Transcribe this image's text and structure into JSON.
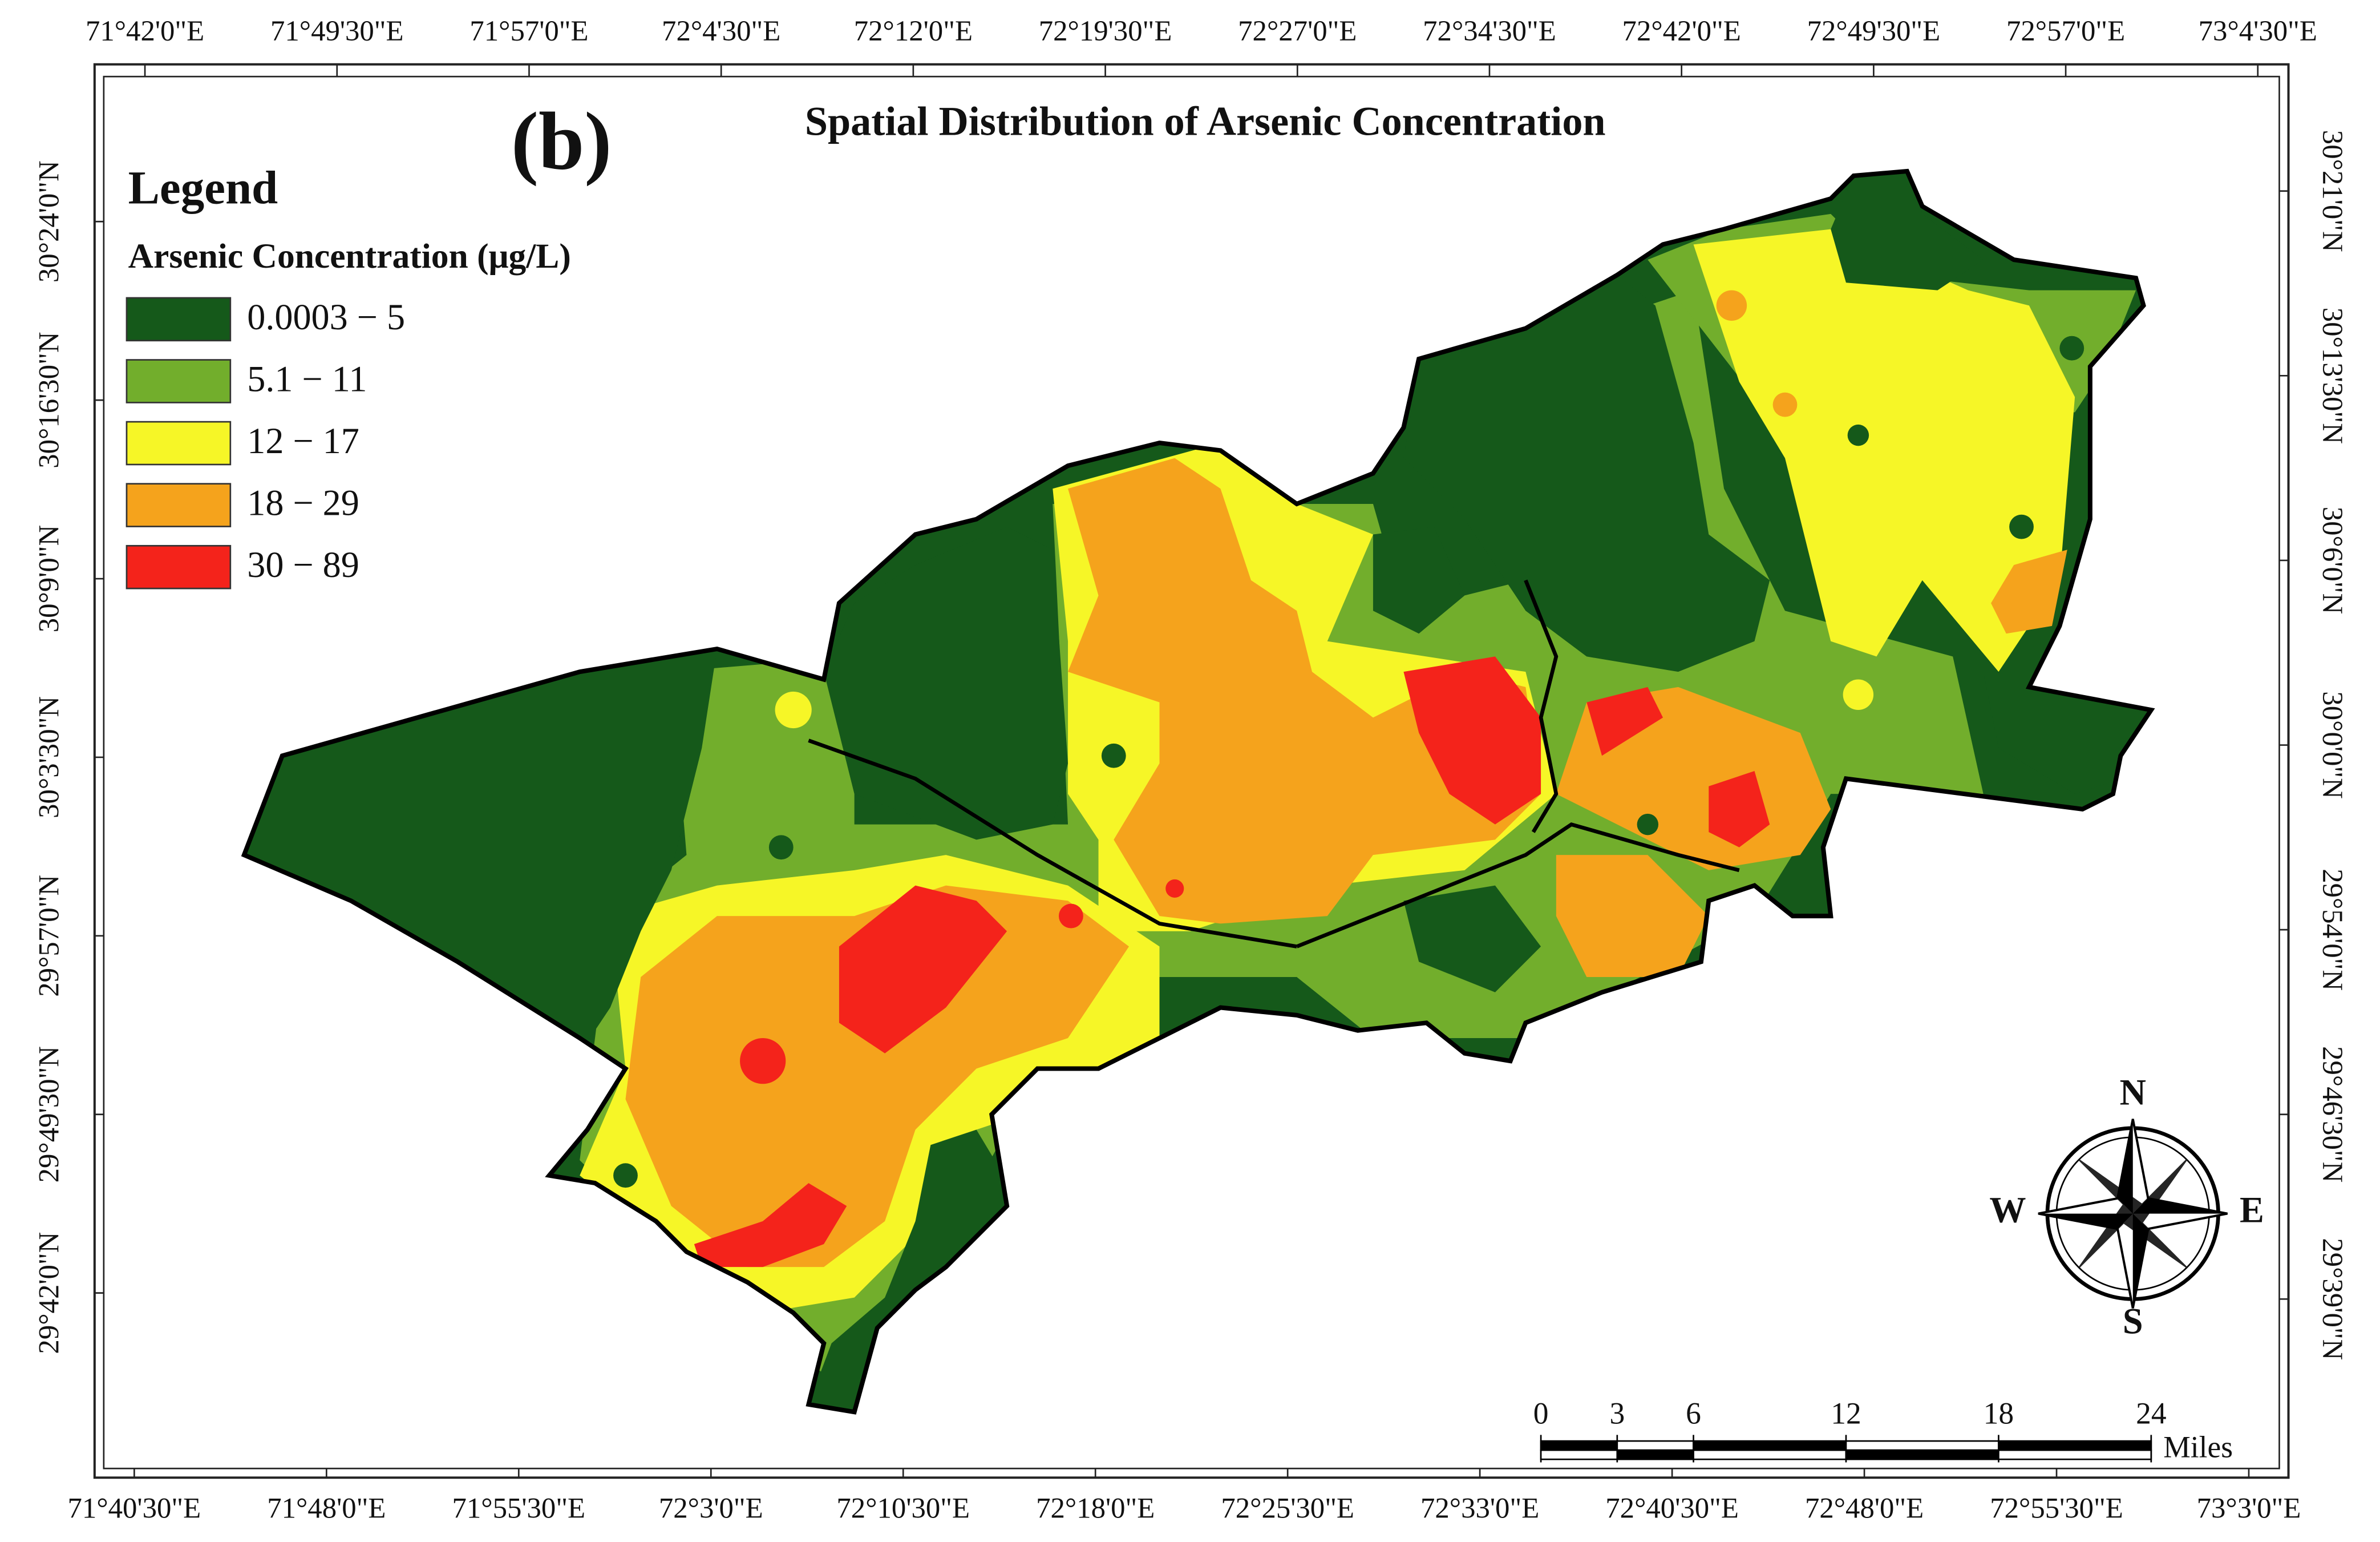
{
  "map": {
    "panel_label": "(b)",
    "title": "Spatial Distribution of Arsenic Concentration",
    "legend": {
      "title": "Legend",
      "subtitle": "Arsenic Concentration (μg/L)",
      "items": [
        {
          "label": "0.0003 − 5",
          "color": "#15591a"
        },
        {
          "label": "5.1 − 11",
          "color": "#72ae2c"
        },
        {
          "label": "12 − 17",
          "color": "#f6f627"
        },
        {
          "label": "18 − 29",
          "color": "#f5a31c"
        },
        {
          "label": "30 − 89",
          "color": "#f4231b"
        }
      ]
    },
    "top_labels": [
      "71°42'0\"E",
      "71°49'30\"E",
      "71°57'0\"E",
      "72°4'30\"E",
      "72°12'0\"E",
      "72°19'30\"E",
      "72°27'0\"E",
      "72°34'30\"E",
      "72°42'0\"E",
      "72°49'30\"E",
      "72°57'0\"E",
      "73°4'30\"E"
    ],
    "bottom_labels": [
      "71°40'30\"E",
      "71°48'0\"E",
      "71°55'30\"E",
      "72°3'0\"E",
      "72°10'30\"E",
      "72°18'0\"E",
      "72°25'30\"E",
      "72°33'0\"E",
      "72°40'30\"E",
      "72°48'0\"E",
      "72°55'30\"E",
      "73°3'0\"E"
    ],
    "left_labels": [
      "30°24'0\"N",
      "30°16'30\"N",
      "30°9'0\"N",
      "30°3'30\"N",
      "29°57'0\"N",
      "29°49'30\"N",
      "29°42'0\"N"
    ],
    "right_labels": [
      "30°21'0\"N",
      "30°13'30\"N",
      "30°6'0\"N",
      "30°0'0\"N",
      "29°54'0\"N",
      "29°46'30\"N",
      "29°39'0\"N"
    ],
    "scale_bar": {
      "ticks": [
        0,
        3,
        6,
        12,
        18,
        24
      ],
      "unit": "Miles"
    },
    "compass": {
      "north": "N",
      "east": "E",
      "south": "S",
      "west": "W"
    }
  }
}
